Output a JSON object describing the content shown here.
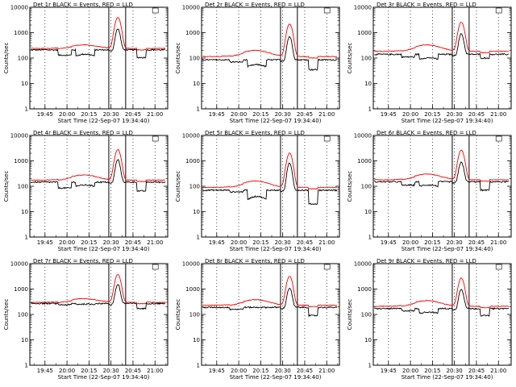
{
  "chart_data": {
    "type": "line",
    "title_template": "Det {det}r BLACK = Events, RED = LLD",
    "ylabel": "Counts/sec",
    "xlabel": "Start Time (22-Sep-07 19:34:40)",
    "y_scale": "log",
    "ylim": [
      1,
      10000
    ],
    "y_tick_labels": [
      "1",
      "10",
      "100",
      "1000",
      "10000"
    ],
    "x_unit": "seconds since start",
    "xlim": [
      0,
      5640
    ],
    "x_tick_labels": [
      "19:45",
      "20:00",
      "20:15",
      "20:30",
      "20:45",
      "21:00"
    ],
    "x_tick_seconds": [
      620,
      1520,
      2420,
      3320,
      4220,
      5120
    ],
    "marker_lines_seconds": [
      3230,
      3920
    ],
    "legend": [
      {
        "name": "Events",
        "color": "#000000"
      },
      {
        "name": "LLD",
        "color": "#ff0000"
      }
    ],
    "panels": [
      {
        "det": 1,
        "events": {
          "base": 210,
          "dip1": 130,
          "dip2": 120,
          "dip3": 105,
          "peak": 1400
        },
        "lld": {
          "base": 240,
          "hump": 330,
          "peak": 4000
        }
      },
      {
        "det": 2,
        "events": {
          "base": 85,
          "dip1": 70,
          "dip2": 45,
          "dip3": 35,
          "peak": 700
        },
        "lld": {
          "base": 115,
          "hump": 200,
          "peak": 2200
        }
      },
      {
        "det": 3,
        "events": {
          "base": 140,
          "dip1": 110,
          "dip2": 90,
          "dip3": 100,
          "peak": 900
        },
        "lld": {
          "base": 185,
          "hump": 330,
          "peak": 2600
        }
      },
      {
        "det": 4,
        "events": {
          "base": 145,
          "dip1": 85,
          "dip2": 100,
          "dip3": 65,
          "peak": 1100
        },
        "lld": {
          "base": 175,
          "hump": 280,
          "peak": 2800
        }
      },
      {
        "det": 5,
        "events": {
          "base": 70,
          "dip1": 60,
          "dip2": 30,
          "dip3": 20,
          "peak": 800
        },
        "lld": {
          "base": 90,
          "hump": 160,
          "peak": 2000
        }
      },
      {
        "det": 6,
        "events": {
          "base": 150,
          "dip1": 110,
          "dip2": 100,
          "dip3": 70,
          "peak": 900
        },
        "lld": {
          "base": 180,
          "hump": 300,
          "peak": 2700
        }
      },
      {
        "det": 7,
        "events": {
          "base": 270,
          "dip1": 240,
          "dip2": 250,
          "dip3": 170,
          "peak": 1500
        },
        "lld": {
          "base": 300,
          "hump": 420,
          "peak": 3800
        }
      },
      {
        "det": 8,
        "events": {
          "base": 190,
          "dip1": 160,
          "dip2": 190,
          "dip3": 90,
          "peak": 1100
        },
        "lld": {
          "base": 230,
          "hump": 380,
          "peak": 3200
        }
      },
      {
        "det": 9,
        "events": {
          "base": 170,
          "dip1": 140,
          "dip2": 110,
          "dip3": 90,
          "peak": 1000
        },
        "lld": {
          "base": 210,
          "hump": 350,
          "peak": 2700
        }
      }
    ]
  }
}
